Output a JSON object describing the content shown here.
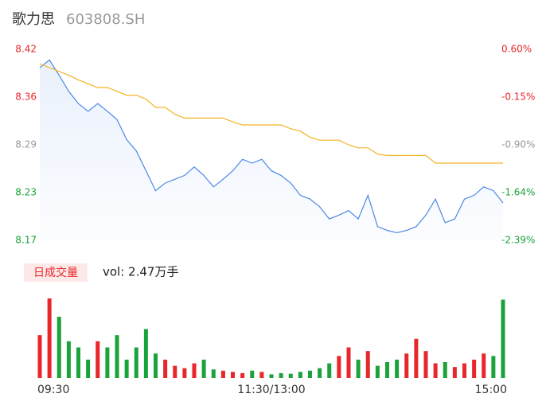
{
  "header": {
    "name": "歌力思",
    "code": "603808.SH"
  },
  "chart_data": [
    {
      "type": "line",
      "x": [
        0,
        5,
        10,
        15,
        20,
        25,
        30,
        35,
        40,
        45,
        50,
        55,
        60,
        65,
        70,
        75,
        80,
        85,
        90,
        95,
        100,
        105,
        110,
        115,
        120,
        125,
        130,
        135,
        140,
        145,
        150,
        155,
        160,
        165,
        170,
        175,
        180,
        185,
        190,
        195,
        200,
        205,
        210,
        215,
        220,
        225,
        230,
        235,
        240
      ],
      "xlim": [
        0,
        240
      ],
      "ylim": [
        8.17,
        8.42
      ],
      "yticks": [
        {
          "value": 8.42,
          "label": "8.42"
        },
        {
          "value": 8.3575,
          "label": "8.36"
        },
        {
          "value": 8.295,
          "label": "8.29"
        },
        {
          "value": 8.2325,
          "label": "8.23"
        },
        {
          "value": 8.17,
          "label": "8.17"
        }
      ],
      "y2lim": [
        -2.39,
        0.6
      ],
      "y2ticks": [
        {
          "value": 0.6,
          "label": "0.60%"
        },
        {
          "value": -0.1475,
          "label": "-0.15%"
        },
        {
          "value": -0.895,
          "label": "-0.90%"
        },
        {
          "value": -1.6425,
          "label": "-1.64%"
        },
        {
          "value": -2.39,
          "label": "-2.39%"
        }
      ],
      "up_color": "#e8262b",
      "flat_color": "#999999",
      "down_color": "#19a33a",
      "fill": true,
      "series": [
        {
          "color": "#4d88e6",
          "values": [
            8.396,
            8.406,
            8.386,
            8.365,
            8.349,
            8.339,
            8.349,
            8.339,
            8.328,
            8.302,
            8.287,
            8.261,
            8.235,
            8.245,
            8.25,
            8.255,
            8.266,
            8.255,
            8.24,
            8.25,
            8.261,
            8.276,
            8.271,
            8.276,
            8.261,
            8.255,
            8.245,
            8.229,
            8.224,
            8.214,
            8.198,
            8.203,
            8.209,
            8.198,
            8.229,
            8.188,
            8.183,
            8.18,
            8.183,
            8.188,
            8.203,
            8.224,
            8.193,
            8.198,
            8.224,
            8.229,
            8.24,
            8.235,
            8.219
          ]
        },
        {
          "color": "#f5b324",
          "values": [
            8.401,
            8.396,
            8.391,
            8.386,
            8.38,
            8.375,
            8.37,
            8.37,
            8.365,
            8.36,
            8.36,
            8.355,
            8.344,
            8.344,
            8.335,
            8.33,
            8.33,
            8.33,
            8.33,
            8.33,
            8.325,
            8.321,
            8.321,
            8.321,
            8.321,
            8.321,
            8.316,
            8.313,
            8.305,
            8.301,
            8.301,
            8.301,
            8.295,
            8.291,
            8.291,
            8.283,
            8.281,
            8.281,
            8.281,
            8.281,
            8.281,
            8.271,
            8.271,
            8.271,
            8.271,
            8.271,
            8.271,
            8.271,
            8.271
          ]
        }
      ]
    },
    {
      "type": "bar",
      "button": "日成交量",
      "label": "vol: 2.47万手",
      "xlim": [
        0,
        240
      ],
      "xticks": [
        {
          "value": 0,
          "label": "09:30"
        },
        {
          "value": 120,
          "label": "11:30/13:00"
        },
        {
          "value": 240,
          "label": "15:00"
        }
      ],
      "up_color": "#e8262b",
      "down_color": "#19a33a",
      "values": [
        3500,
        6500,
        5000,
        3000,
        2500,
        1500,
        3000,
        2500,
        3500,
        1500,
        2500,
        4000,
        2000,
        1500,
        1000,
        800,
        1200,
        1500,
        700,
        600,
        500,
        400,
        600,
        500,
        300,
        400,
        350,
        500,
        600,
        800,
        1200,
        1800,
        2500,
        1500,
        2200,
        1000,
        1300,
        1500,
        2000,
        3200,
        2200,
        1200,
        1300,
        900,
        1200,
        1500,
        2000,
        1800,
        6400
      ]
    }
  ]
}
